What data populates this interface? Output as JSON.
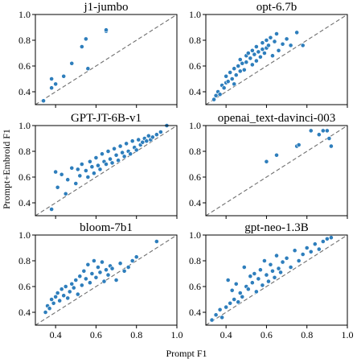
{
  "figure": {
    "xlabel": "Prompt F1",
    "ylabel": "Prompt+Embroid F1"
  },
  "chart_data": [
    {
      "type": "scatter",
      "title": "j1-jumbo",
      "xlim": [
        0.3,
        1.0
      ],
      "ylim": [
        0.3,
        1.0
      ],
      "xticks": [
        "0.4",
        "0.6",
        "0.8",
        "1.0"
      ],
      "yticks": [
        "0.4",
        "0.6",
        "0.8",
        "1.0"
      ],
      "diagonal": true,
      "x": [
        0.34,
        0.38,
        0.38,
        0.4,
        0.44,
        0.48,
        0.53,
        0.55,
        0.56,
        0.65,
        0.65
      ],
      "y": [
        0.33,
        0.43,
        0.5,
        0.46,
        0.52,
        0.62,
        0.75,
        0.81,
        0.58,
        0.87,
        0.88
      ]
    },
    {
      "type": "scatter",
      "title": "opt-6.7b",
      "xlim": [
        0.3,
        1.0
      ],
      "ylim": [
        0.3,
        1.0
      ],
      "xticks": [
        "0.4",
        "0.6",
        "0.8",
        "1.0"
      ],
      "yticks": [
        "0.4",
        "0.6",
        "0.8",
        "1.0"
      ],
      "diagonal": true,
      "x": [
        0.34,
        0.35,
        0.36,
        0.37,
        0.38,
        0.39,
        0.4,
        0.4,
        0.41,
        0.42,
        0.43,
        0.44,
        0.44,
        0.45,
        0.46,
        0.47,
        0.47,
        0.48,
        0.49,
        0.5,
        0.5,
        0.51,
        0.52,
        0.53,
        0.53,
        0.54,
        0.55,
        0.55,
        0.56,
        0.57,
        0.58,
        0.58,
        0.59,
        0.6,
        0.6,
        0.61,
        0.62,
        0.63,
        0.64,
        0.65,
        0.66,
        0.68,
        0.7,
        0.72,
        0.75,
        0.78
      ],
      "y": [
        0.34,
        0.37,
        0.4,
        0.38,
        0.45,
        0.43,
        0.47,
        0.52,
        0.48,
        0.55,
        0.5,
        0.58,
        0.46,
        0.53,
        0.6,
        0.56,
        0.65,
        0.62,
        0.57,
        0.68,
        0.63,
        0.7,
        0.66,
        0.61,
        0.72,
        0.69,
        0.75,
        0.64,
        0.71,
        0.67,
        0.78,
        0.73,
        0.7,
        0.8,
        0.74,
        0.76,
        0.82,
        0.68,
        0.79,
        0.85,
        0.72,
        0.77,
        0.81,
        0.76,
        0.86,
        0.76
      ]
    },
    {
      "type": "scatter",
      "title": "GPT-JT-6B-v1",
      "xlim": [
        0.3,
        1.0
      ],
      "ylim": [
        0.3,
        1.0
      ],
      "xticks": [
        "0.4",
        "0.6",
        "0.8",
        "1.0"
      ],
      "yticks": [
        "0.4",
        "0.6",
        "0.8",
        "1.0"
      ],
      "diagonal": true,
      "x": [
        0.38,
        0.4,
        0.41,
        0.43,
        0.45,
        0.46,
        0.48,
        0.5,
        0.51,
        0.52,
        0.53,
        0.55,
        0.56,
        0.57,
        0.58,
        0.59,
        0.6,
        0.61,
        0.62,
        0.63,
        0.64,
        0.65,
        0.66,
        0.67,
        0.68,
        0.69,
        0.7,
        0.71,
        0.72,
        0.73,
        0.74,
        0.75,
        0.76,
        0.77,
        0.78,
        0.79,
        0.8,
        0.81,
        0.82,
        0.83,
        0.84,
        0.85,
        0.86,
        0.87,
        0.88,
        0.9,
        0.92,
        0.95
      ],
      "y": [
        0.35,
        0.64,
        0.52,
        0.62,
        0.47,
        0.58,
        0.67,
        0.55,
        0.66,
        0.61,
        0.7,
        0.65,
        0.6,
        0.72,
        0.68,
        0.63,
        0.75,
        0.69,
        0.66,
        0.78,
        0.72,
        0.7,
        0.8,
        0.74,
        0.71,
        0.82,
        0.77,
        0.73,
        0.84,
        0.79,
        0.76,
        0.86,
        0.8,
        0.78,
        0.88,
        0.83,
        0.81,
        0.89,
        0.85,
        0.87,
        0.9,
        0.88,
        0.92,
        0.89,
        0.91,
        0.93,
        0.95,
        1.0
      ]
    },
    {
      "type": "scatter",
      "title": "openai_text-davinci-003",
      "xlim": [
        0.3,
        1.0
      ],
      "ylim": [
        0.3,
        1.0
      ],
      "xticks": [
        "0.4",
        "0.6",
        "0.8",
        "1.0"
      ],
      "yticks": [
        "0.4",
        "0.6",
        "0.8",
        "1.0"
      ],
      "diagonal": true,
      "x": [
        0.6,
        0.65,
        0.75,
        0.76,
        0.82,
        0.86,
        0.88,
        0.9,
        0.91,
        0.92
      ],
      "y": [
        0.72,
        0.77,
        0.84,
        0.85,
        0.96,
        0.93,
        0.96,
        0.96,
        0.9,
        0.84
      ]
    },
    {
      "type": "scatter",
      "title": "bloom-7b1",
      "xlim": [
        0.3,
        1.0
      ],
      "ylim": [
        0.3,
        1.0
      ],
      "xticks": [
        "0.4",
        "0.6",
        "0.8",
        "1.0"
      ],
      "yticks": [
        "0.4",
        "0.6",
        "0.8",
        "1.0"
      ],
      "diagonal": true,
      "x": [
        0.35,
        0.36,
        0.37,
        0.38,
        0.39,
        0.4,
        0.41,
        0.42,
        0.43,
        0.44,
        0.45,
        0.46,
        0.47,
        0.48,
        0.49,
        0.5,
        0.51,
        0.52,
        0.53,
        0.54,
        0.55,
        0.56,
        0.57,
        0.58,
        0.59,
        0.6,
        0.61,
        0.62,
        0.63,
        0.64,
        0.65,
        0.66,
        0.67,
        0.68,
        0.7,
        0.72,
        0.74,
        0.76,
        0.78,
        0.8,
        0.9
      ],
      "y": [
        0.4,
        0.45,
        0.43,
        0.5,
        0.47,
        0.52,
        0.55,
        0.49,
        0.58,
        0.53,
        0.6,
        0.51,
        0.56,
        0.62,
        0.59,
        0.65,
        0.54,
        0.68,
        0.61,
        0.72,
        0.66,
        0.77,
        0.63,
        0.7,
        0.8,
        0.67,
        0.75,
        0.71,
        0.79,
        0.64,
        0.73,
        0.69,
        0.76,
        0.74,
        0.65,
        0.78,
        0.72,
        0.75,
        0.8,
        0.83,
        0.95
      ]
    },
    {
      "type": "scatter",
      "title": "gpt-neo-1.3B",
      "xlim": [
        0.3,
        1.0
      ],
      "ylim": [
        0.3,
        1.0
      ],
      "xticks": [
        "0.4",
        "0.6",
        "0.8",
        "1.0"
      ],
      "yticks": [
        "0.4",
        "0.6",
        "0.8",
        "1.0"
      ],
      "diagonal": true,
      "x": [
        0.33,
        0.35,
        0.37,
        0.38,
        0.4,
        0.41,
        0.42,
        0.43,
        0.44,
        0.45,
        0.46,
        0.47,
        0.48,
        0.49,
        0.5,
        0.51,
        0.52,
        0.53,
        0.54,
        0.55,
        0.56,
        0.57,
        0.58,
        0.59,
        0.6,
        0.61,
        0.62,
        0.63,
        0.64,
        0.65,
        0.66,
        0.67,
        0.68,
        0.7,
        0.72,
        0.74,
        0.76,
        0.78,
        0.8,
        0.82,
        0.84,
        0.86,
        0.88,
        0.9,
        0.92
      ],
      "y": [
        0.34,
        0.38,
        0.42,
        0.36,
        0.44,
        0.65,
        0.47,
        0.57,
        0.5,
        0.62,
        0.48,
        0.55,
        0.52,
        0.75,
        0.6,
        0.58,
        0.68,
        0.63,
        0.7,
        0.56,
        0.66,
        0.73,
        0.61,
        0.8,
        0.69,
        0.64,
        0.77,
        0.72,
        0.67,
        0.84,
        0.74,
        0.71,
        0.79,
        0.82,
        0.75,
        0.88,
        0.8,
        0.85,
        0.9,
        0.87,
        0.93,
        0.89,
        0.95,
        0.97,
        0.98
      ]
    }
  ]
}
